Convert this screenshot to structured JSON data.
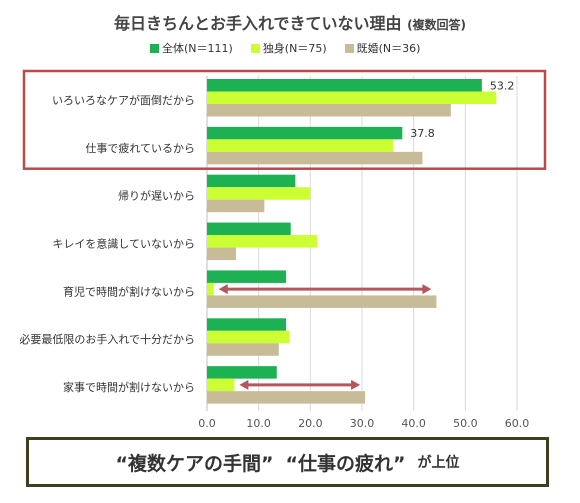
{
  "title": "毎日きちんとお手入れできていない理由",
  "subtitle": "(複数回答)",
  "banner": {
    "part1": "“複数ケアの手間”",
    "part2": "“仕事の疲れ”",
    "part3": "が上位"
  },
  "colors": {
    "all": "#1db154",
    "single": "#ccff33",
    "married": "#c7bc97",
    "highlight_box": "#b94a4a",
    "arrow": "#b5575a",
    "banner_border": "#3f3f1f"
  },
  "chart_data": {
    "type": "bar",
    "orientation": "horizontal",
    "title": "毎日きちんとお手入れできていない理由",
    "subtitle": "(複数回答)",
    "categories": [
      "いろいろなケアが面倒だから",
      "仕事で疲れているから",
      "帰りが遅いから",
      "キレイを意識していないから",
      "育児で時間が割けないから",
      "必要最低限のお手入れで十分だから",
      "家事で時間が割けないから"
    ],
    "series": [
      {
        "name": "全体(N＝111)",
        "color": "#1db154",
        "values": [
          53.2,
          37.8,
          17.1,
          16.2,
          15.3,
          15.3,
          13.5
        ]
      },
      {
        "name": "独身(N＝75)",
        "color": "#ccff33",
        "values": [
          56.0,
          36.0,
          20.0,
          21.3,
          1.3,
          16.0,
          5.3
        ]
      },
      {
        "name": "既婚(N＝36)",
        "color": "#c7bc97",
        "values": [
          47.2,
          41.7,
          11.1,
          5.6,
          44.4,
          13.9,
          30.6
        ]
      }
    ],
    "data_labels": [
      {
        "category_index": 0,
        "series_index": 0,
        "text": "53.2"
      },
      {
        "category_index": 1,
        "series_index": 0,
        "text": "37.8"
      }
    ],
    "xlim": [
      0,
      60
    ],
    "x_ticks": [
      "0.0",
      "10.0",
      "20.0",
      "30.0",
      "40.0",
      "50.0",
      "60.0"
    ],
    "grid": true,
    "legend": "top",
    "annotations": [
      {
        "type": "highlight_box",
        "categories": [
          0,
          1
        ]
      },
      {
        "type": "double_arrow",
        "category_index": 4,
        "from": 1.3,
        "to": 44.4
      },
      {
        "type": "double_arrow",
        "category_index": 6,
        "from": 5.3,
        "to": 30.6
      }
    ]
  }
}
